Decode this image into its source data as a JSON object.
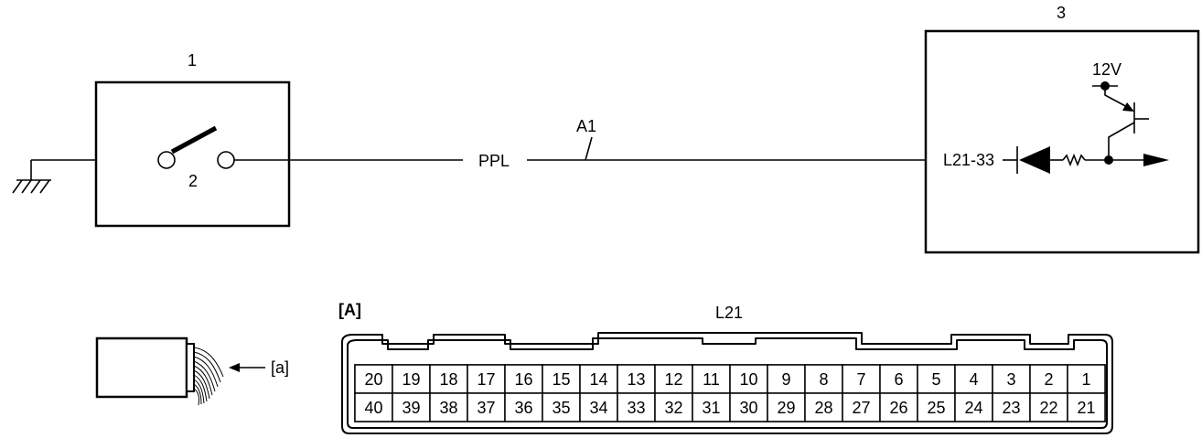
{
  "labels": {
    "switch_unit": "1",
    "switch": "2",
    "control_unit": "3",
    "wire_color": "PPL",
    "wire_id": "A1",
    "terminal": "L21-33",
    "supply": "12V",
    "view_label": "[A]",
    "connector_name": "L21",
    "view_arrow": "[a]"
  },
  "connector": {
    "top_row": [
      "20",
      "19",
      "18",
      "17",
      "16",
      "15",
      "14",
      "13",
      "12",
      "11",
      "10",
      "9",
      "8",
      "7",
      "6",
      "5",
      "4",
      "3",
      "2",
      "1"
    ],
    "bottom_row": [
      "40",
      "39",
      "38",
      "37",
      "36",
      "35",
      "34",
      "33",
      "32",
      "31",
      "30",
      "29",
      "28",
      "27",
      "26",
      "25",
      "24",
      "23",
      "22",
      "21"
    ]
  },
  "colors": {
    "line": "#000000",
    "background": "#ffffff"
  }
}
